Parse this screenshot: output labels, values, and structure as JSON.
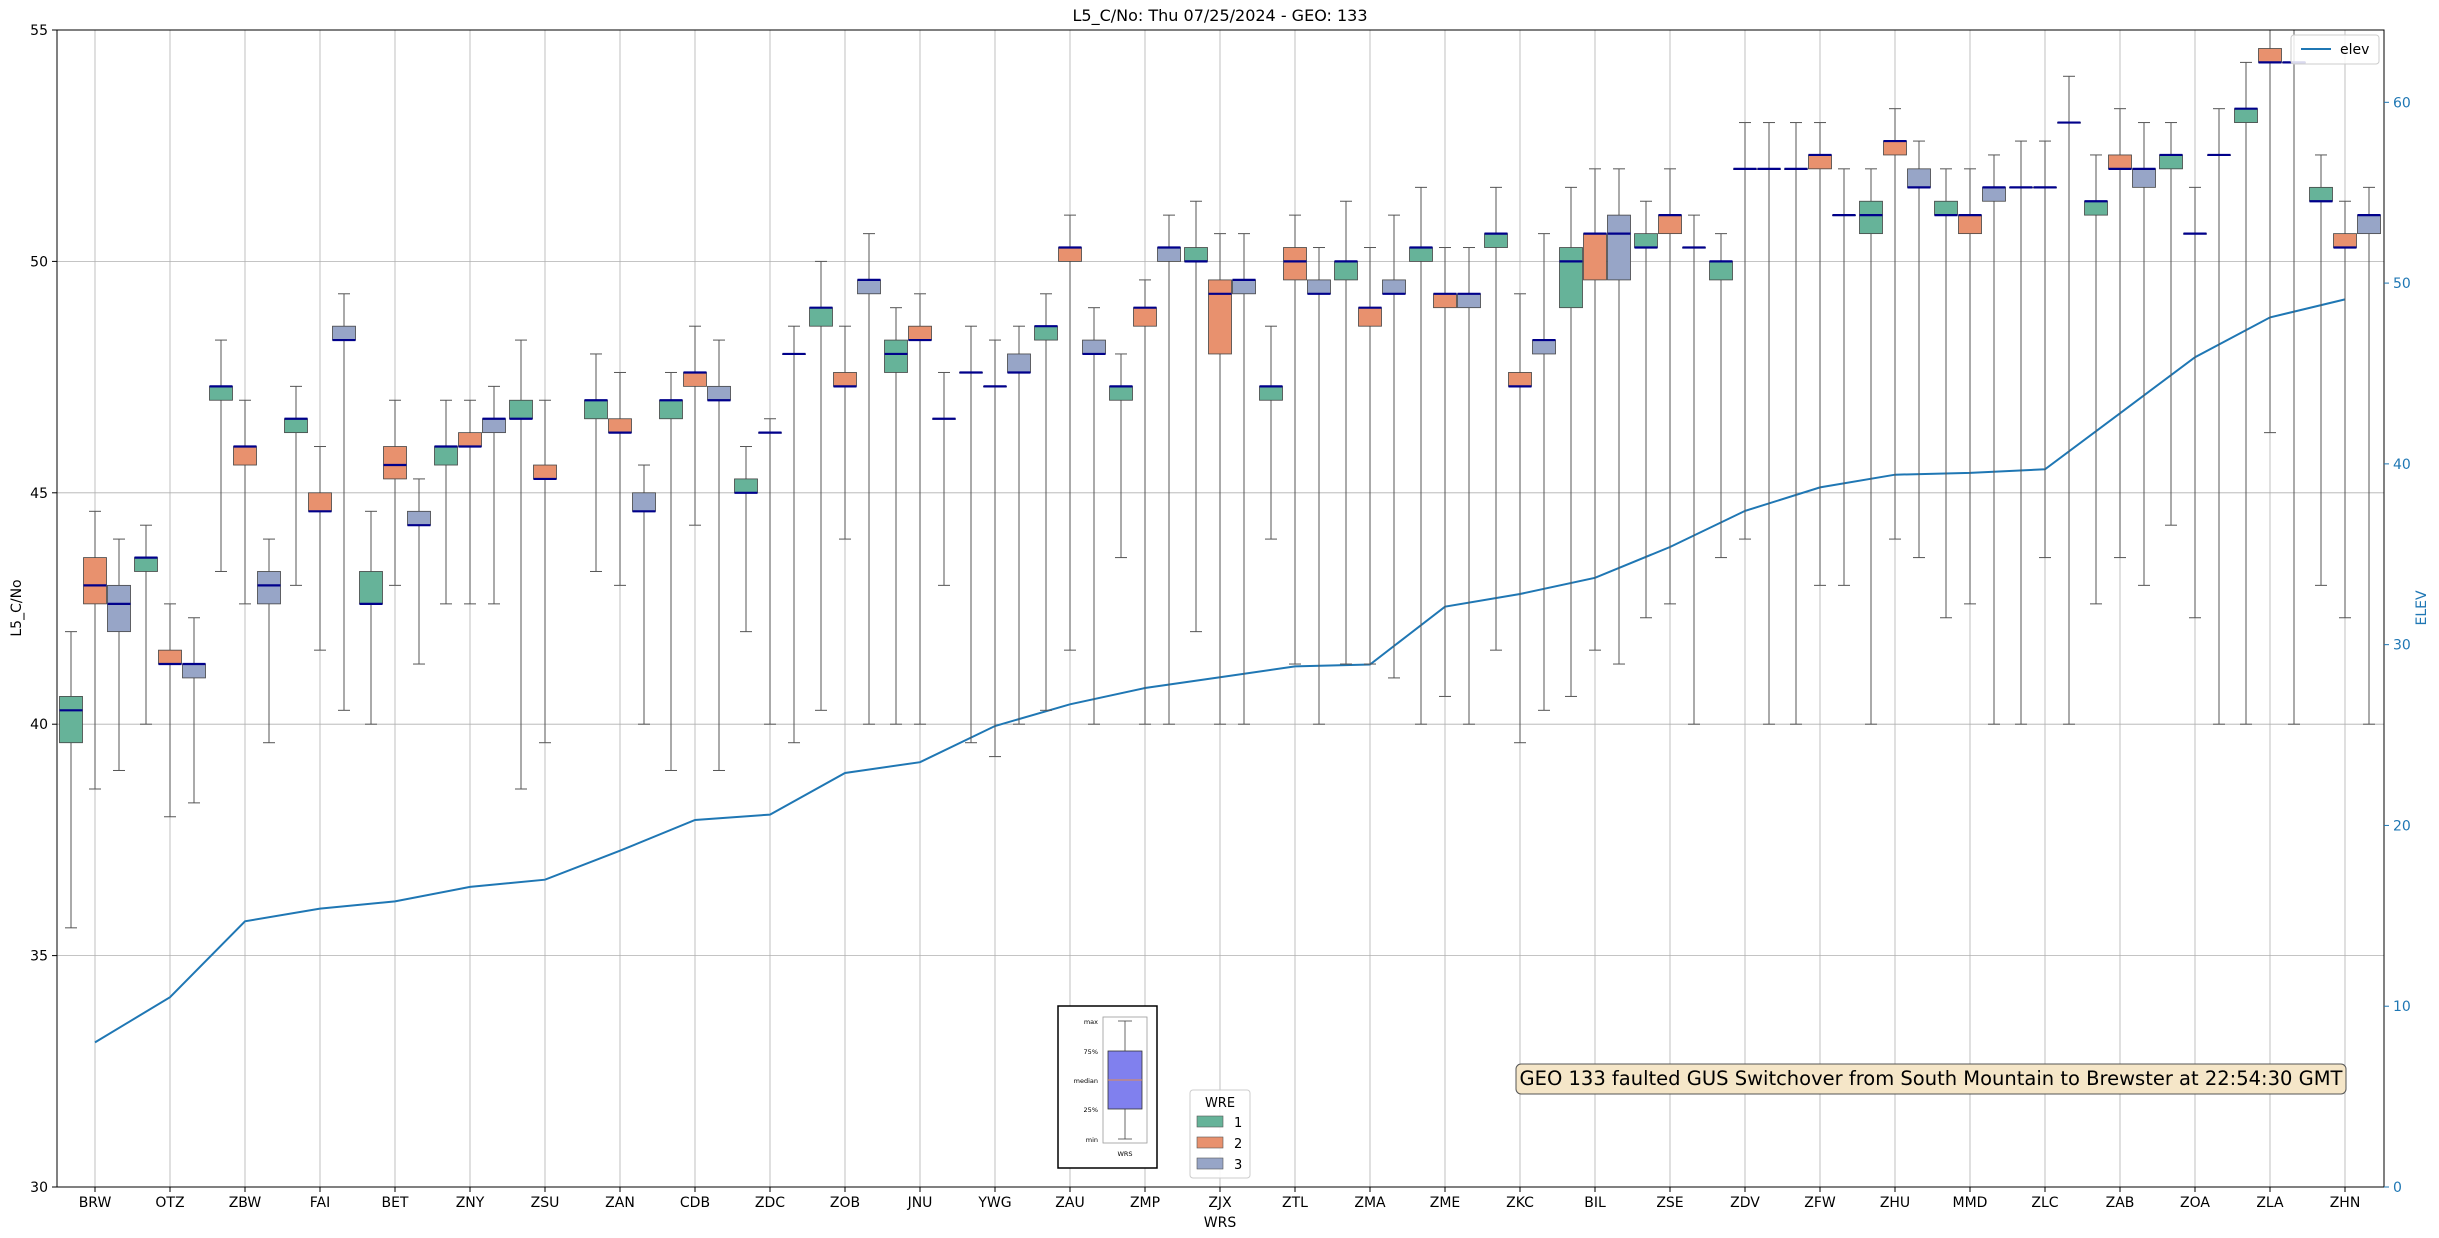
{
  "chart_data": {
    "type": "box",
    "title": "L5_C/No: Thu 07/25/2024 - GEO: 133",
    "xlabel": "WRS",
    "ylabel": "L5_C/No",
    "y2label": "ELEV",
    "ylim": [
      30,
      55
    ],
    "y2lim": [
      0,
      64
    ],
    "yticks": [
      30,
      35,
      40,
      45,
      50,
      55
    ],
    "y2ticks": [
      0,
      10,
      20,
      30,
      40,
      50,
      60
    ],
    "grid": true,
    "categories": [
      "BRW",
      "OTZ",
      "ZBW",
      "FAI",
      "BET",
      "ZNY",
      "ZSU",
      "ZAN",
      "CDB",
      "ZDC",
      "ZOB",
      "JNU",
      "YWG",
      "ZAU",
      "ZMP",
      "ZJX",
      "ZTL",
      "ZMA",
      "ZME",
      "ZKC",
      "BIL",
      "ZSE",
      "ZDV",
      "ZFW",
      "ZHU",
      "MMD",
      "ZLC",
      "ZAB",
      "ZOA",
      "ZLA",
      "ZHN"
    ],
    "legend_wre": {
      "title": "WRE",
      "entries": [
        "1",
        "2",
        "3"
      ],
      "colors": [
        "#66b399",
        "#e8916e",
        "#97a5c7"
      ],
      "placement": "bottom-center"
    },
    "legend_elev": {
      "entries": [
        "elev"
      ],
      "placement": "top-right"
    },
    "median_color": "#00008b",
    "elev_color": "#1f77b4",
    "annotation": "GEO 133 faulted GUS Switchover from South Mountain to Brewster at 22:54:30 GMT",
    "key_panel": {
      "labels": [
        "max",
        "75%",
        "median",
        "25%",
        "min"
      ],
      "footer": "WRS"
    },
    "elevation": [
      8,
      10.5,
      14.7,
      15.4,
      15.8,
      16.6,
      17,
      18.6,
      20.3,
      20.6,
      22.9,
      23.5,
      25.5,
      26.7,
      27.6,
      28.2,
      28.8,
      28.9,
      32.1,
      32.8,
      33.7,
      35.4,
      37.4,
      38.7,
      39.4,
      39.5,
      39.7,
      42.8,
      45.9,
      48.1,
      49.1
    ],
    "series": [
      {
        "name": "1",
        "offset": -1,
        "boxes": [
          {
            "cat": "BRW",
            "min": 35.6,
            "q1": 39.6,
            "median": 40.3,
            "q3": 40.6,
            "max": 42.0
          },
          {
            "cat": "OTZ",
            "min": 40.0,
            "q1": 43.3,
            "median": 43.6,
            "q3": 43.6,
            "max": 44.3
          },
          {
            "cat": "ZBW",
            "min": 43.3,
            "q1": 47.0,
            "median": 47.3,
            "q3": 47.3,
            "max": 48.3
          },
          {
            "cat": "FAI",
            "min": 43.0,
            "q1": 46.3,
            "median": 46.6,
            "q3": 46.6,
            "max": 47.3
          },
          {
            "cat": "BET",
            "min": 40.0,
            "q1": 42.6,
            "median": 42.6,
            "q3": 43.3,
            "max": 44.6
          },
          {
            "cat": "ZNY",
            "min": 42.6,
            "q1": 45.6,
            "median": 46.0,
            "q3": 46.0,
            "max": 47.0
          },
          {
            "cat": "ZSU",
            "min": 38.6,
            "q1": 46.6,
            "median": 46.6,
            "q3": 47.0,
            "max": 48.3
          },
          {
            "cat": "ZAN",
            "min": 43.3,
            "q1": 46.6,
            "median": 47.0,
            "q3": 47.0,
            "max": 48.0
          },
          {
            "cat": "CDB",
            "min": 39.0,
            "q1": 46.6,
            "median": 47.0,
            "q3": 47.0,
            "max": 47.6
          },
          {
            "cat": "ZDC",
            "min": 42.0,
            "q1": 45.0,
            "median": 45.0,
            "q3": 45.3,
            "max": 46.0
          },
          {
            "cat": "ZOB",
            "min": 40.3,
            "q1": 48.6,
            "median": 49.0,
            "q3": 49.0,
            "max": 50.0
          },
          {
            "cat": "JNU",
            "min": 40.0,
            "q1": 47.6,
            "median": 48.0,
            "q3": 48.3,
            "max": 49.0
          },
          {
            "cat": "YWG",
            "min": 39.6,
            "q1": 47.6,
            "median": 47.6,
            "q3": 47.6,
            "max": 48.6
          },
          {
            "cat": "ZAU",
            "min": 40.3,
            "q1": 48.3,
            "median": 48.6,
            "q3": 48.6,
            "max": 49.3
          },
          {
            "cat": "ZMP",
            "min": 43.6,
            "q1": 47.0,
            "median": 47.3,
            "q3": 47.3,
            "max": 48.0
          },
          {
            "cat": "ZJX",
            "min": 42.0,
            "q1": 50.0,
            "median": 50.0,
            "q3": 50.3,
            "max": 51.3
          },
          {
            "cat": "ZTL",
            "min": 44.0,
            "q1": 47.0,
            "median": 47.3,
            "q3": 47.3,
            "max": 48.6
          },
          {
            "cat": "ZMA",
            "min": 41.3,
            "q1": 49.6,
            "median": 50.0,
            "q3": 50.0,
            "max": 51.3
          },
          {
            "cat": "ZME",
            "min": 40.0,
            "q1": 50.0,
            "median": 50.3,
            "q3": 50.3,
            "max": 51.6
          },
          {
            "cat": "ZKC",
            "min": 41.6,
            "q1": 50.3,
            "median": 50.6,
            "q3": 50.6,
            "max": 51.6
          },
          {
            "cat": "BIL",
            "min": 40.6,
            "q1": 49.0,
            "median": 50.0,
            "q3": 50.3,
            "max": 51.6
          },
          {
            "cat": "ZSE",
            "min": 42.3,
            "q1": 50.3,
            "median": 50.3,
            "q3": 50.6,
            "max": 51.3
          },
          {
            "cat": "ZDV",
            "min": 43.6,
            "q1": 49.6,
            "median": 50.0,
            "q3": 50.0,
            "max": 50.6
          },
          {
            "cat": "ZFW",
            "min": 40.0,
            "q1": 52.0,
            "median": 52.0,
            "q3": 52.0,
            "max": 53.0
          },
          {
            "cat": "ZHU",
            "min": 40.0,
            "q1": 50.6,
            "median": 51.0,
            "q3": 51.3,
            "max": 52.0
          },
          {
            "cat": "MMD",
            "min": 42.3,
            "q1": 51.0,
            "median": 51.0,
            "q3": 51.3,
            "max": 52.0
          },
          {
            "cat": "ZLC",
            "min": 40.0,
            "q1": 51.6,
            "median": 51.6,
            "q3": 51.6,
            "max": 52.6
          },
          {
            "cat": "ZAB",
            "min": 42.6,
            "q1": 51.0,
            "median": 51.3,
            "q3": 51.3,
            "max": 52.3
          },
          {
            "cat": "ZOA",
            "min": 44.3,
            "q1": 52.0,
            "median": 52.3,
            "q3": 52.3,
            "max": 53.0
          },
          {
            "cat": "ZLA",
            "min": 40.0,
            "q1": 53.0,
            "median": 53.3,
            "q3": 53.3,
            "max": 54.3
          },
          {
            "cat": "ZHN",
            "min": 43.0,
            "q1": 51.3,
            "median": 51.3,
            "q3": 51.6,
            "max": 52.3
          }
        ]
      },
      {
        "name": "2",
        "offset": 0,
        "boxes": [
          {
            "cat": "BRW",
            "min": 38.6,
            "q1": 42.6,
            "median": 43.0,
            "q3": 43.6,
            "max": 44.6
          },
          {
            "cat": "OTZ",
            "min": 38.0,
            "q1": 41.3,
            "median": 41.3,
            "q3": 41.6,
            "max": 42.6
          },
          {
            "cat": "ZBW",
            "min": 42.6,
            "q1": 45.6,
            "median": 46.0,
            "q3": 46.0,
            "max": 47.0
          },
          {
            "cat": "FAI",
            "min": 41.6,
            "q1": 44.6,
            "median": 44.6,
            "q3": 45.0,
            "max": 46.0
          },
          {
            "cat": "BET",
            "min": 43.0,
            "q1": 45.3,
            "median": 45.6,
            "q3": 46.0,
            "max": 47.0
          },
          {
            "cat": "ZNY",
            "min": 42.6,
            "q1": 46.0,
            "median": 46.0,
            "q3": 46.3,
            "max": 47.0
          },
          {
            "cat": "ZSU",
            "min": 39.6,
            "q1": 45.3,
            "median": 45.3,
            "q3": 45.6,
            "max": 47.0
          },
          {
            "cat": "ZAN",
            "min": 43.0,
            "q1": 46.3,
            "median": 46.3,
            "q3": 46.6,
            "max": 47.6
          },
          {
            "cat": "CDB",
            "min": 44.3,
            "q1": 47.3,
            "median": 47.6,
            "q3": 47.6,
            "max": 48.6
          },
          {
            "cat": "ZDC",
            "min": 40.0,
            "q1": 46.3,
            "median": 46.3,
            "q3": 46.3,
            "max": 46.6
          },
          {
            "cat": "ZOB",
            "min": 44.0,
            "q1": 47.3,
            "median": 47.3,
            "q3": 47.6,
            "max": 48.6
          },
          {
            "cat": "JNU",
            "min": 40.0,
            "q1": 48.3,
            "median": 48.3,
            "q3": 48.6,
            "max": 49.3
          },
          {
            "cat": "YWG",
            "min": 39.3,
            "q1": 47.3,
            "median": 47.3,
            "q3": 47.3,
            "max": 48.3
          },
          {
            "cat": "ZAU",
            "min": 41.6,
            "q1": 50.0,
            "median": 50.3,
            "q3": 50.3,
            "max": 51.0
          },
          {
            "cat": "ZMP",
            "min": 40.0,
            "q1": 48.6,
            "median": 49.0,
            "q3": 49.0,
            "max": 49.6
          },
          {
            "cat": "ZJX",
            "min": 40.0,
            "q1": 48.0,
            "median": 49.3,
            "q3": 49.6,
            "max": 50.6
          },
          {
            "cat": "ZTL",
            "min": 41.3,
            "q1": 49.6,
            "median": 50.0,
            "q3": 50.3,
            "max": 51.0
          },
          {
            "cat": "ZMA",
            "min": 41.3,
            "q1": 48.6,
            "median": 49.0,
            "q3": 49.0,
            "max": 50.3
          },
          {
            "cat": "ZME",
            "min": 40.6,
            "q1": 49.0,
            "median": 49.3,
            "q3": 49.3,
            "max": 50.3
          },
          {
            "cat": "ZKC",
            "min": 39.6,
            "q1": 47.3,
            "median": 47.3,
            "q3": 47.6,
            "max": 49.3
          },
          {
            "cat": "BIL",
            "min": 41.6,
            "q1": 49.6,
            "median": 50.6,
            "q3": 50.6,
            "max": 52.0
          },
          {
            "cat": "ZSE",
            "min": 42.6,
            "q1": 50.6,
            "median": 51.0,
            "q3": 51.0,
            "max": 52.0
          },
          {
            "cat": "ZDV",
            "min": 44.0,
            "q1": 52.0,
            "median": 52.0,
            "q3": 52.0,
            "max": 53.0
          },
          {
            "cat": "ZFW",
            "min": 43.0,
            "q1": 52.0,
            "median": 52.3,
            "q3": 52.3,
            "max": 53.0
          },
          {
            "cat": "ZHU",
            "min": 44.0,
            "q1": 52.3,
            "median": 52.6,
            "q3": 52.6,
            "max": 53.3
          },
          {
            "cat": "MMD",
            "min": 42.6,
            "q1": 50.6,
            "median": 51.0,
            "q3": 51.0,
            "max": 52.0
          },
          {
            "cat": "ZLC",
            "min": 43.6,
            "q1": 51.6,
            "median": 51.6,
            "q3": 51.6,
            "max": 52.6
          },
          {
            "cat": "ZAB",
            "min": 43.6,
            "q1": 52.0,
            "median": 52.0,
            "q3": 52.3,
            "max": 53.3
          },
          {
            "cat": "ZOA",
            "min": 42.3,
            "q1": 50.6,
            "median": 50.6,
            "q3": 50.6,
            "max": 51.6
          },
          {
            "cat": "ZLA",
            "min": 46.3,
            "q1": 54.3,
            "median": 54.3,
            "q3": 54.6,
            "max": 55.0
          },
          {
            "cat": "ZHN",
            "min": 42.3,
            "q1": 50.3,
            "median": 50.3,
            "q3": 50.6,
            "max": 51.3
          }
        ]
      },
      {
        "name": "3",
        "offset": 1,
        "boxes": [
          {
            "cat": "BRW",
            "min": 39.0,
            "q1": 42.0,
            "median": 42.6,
            "q3": 43.0,
            "max": 44.0
          },
          {
            "cat": "OTZ",
            "min": 38.3,
            "q1": 41.0,
            "median": 41.3,
            "q3": 41.3,
            "max": 42.3
          },
          {
            "cat": "ZBW",
            "min": 39.6,
            "q1": 42.6,
            "median": 43.0,
            "q3": 43.3,
            "max": 44.0
          },
          {
            "cat": "FAI",
            "min": 40.3,
            "q1": 48.3,
            "median": 48.3,
            "q3": 48.6,
            "max": 49.3
          },
          {
            "cat": "BET",
            "min": 41.3,
            "q1": 44.3,
            "median": 44.3,
            "q3": 44.6,
            "max": 45.3
          },
          {
            "cat": "ZNY",
            "min": 42.6,
            "q1": 46.3,
            "median": 46.6,
            "q3": 46.6,
            "max": 47.3
          },
          {
            "cat": "ZSU",
            "min": 0,
            "q1": 0,
            "median": 0,
            "q3": 0,
            "max": 0,
            "empty": true
          },
          {
            "cat": "ZAN",
            "min": 40.0,
            "q1": 44.6,
            "median": 44.6,
            "q3": 45.0,
            "max": 45.6
          },
          {
            "cat": "CDB",
            "min": 39.0,
            "q1": 47.0,
            "median": 47.0,
            "q3": 47.3,
            "max": 48.3
          },
          {
            "cat": "ZDC",
            "min": 39.6,
            "q1": 48.0,
            "median": 48.0,
            "q3": 48.0,
            "max": 48.6
          },
          {
            "cat": "ZOB",
            "min": 40.0,
            "q1": 49.3,
            "median": 49.6,
            "q3": 49.6,
            "max": 50.6
          },
          {
            "cat": "JNU",
            "min": 43.0,
            "q1": 46.6,
            "median": 46.6,
            "q3": 46.6,
            "max": 47.6
          },
          {
            "cat": "YWG",
            "min": 40.0,
            "q1": 47.6,
            "median": 47.6,
            "q3": 48.0,
            "max": 48.6
          },
          {
            "cat": "ZAU",
            "min": 40.0,
            "q1": 48.0,
            "median": 48.0,
            "q3": 48.3,
            "max": 49.0
          },
          {
            "cat": "ZMP",
            "min": 40.0,
            "q1": 50.0,
            "median": 50.3,
            "q3": 50.3,
            "max": 51.0
          },
          {
            "cat": "ZJX",
            "min": 40.0,
            "q1": 49.3,
            "median": 49.6,
            "q3": 49.6,
            "max": 50.6
          },
          {
            "cat": "ZTL",
            "min": 40.0,
            "q1": 49.3,
            "median": 49.3,
            "q3": 49.6,
            "max": 50.3
          },
          {
            "cat": "ZMA",
            "min": 41.0,
            "q1": 49.3,
            "median": 49.3,
            "q3": 49.6,
            "max": 51.0
          },
          {
            "cat": "ZME",
            "min": 40.0,
            "q1": 49.0,
            "median": 49.3,
            "q3": 49.3,
            "max": 50.3
          },
          {
            "cat": "ZKC",
            "min": 40.3,
            "q1": 48.0,
            "median": 48.3,
            "q3": 48.3,
            "max": 50.6
          },
          {
            "cat": "BIL",
            "min": 41.3,
            "q1": 49.6,
            "median": 50.6,
            "q3": 51.0,
            "max": 52.0
          },
          {
            "cat": "ZSE",
            "min": 40.0,
            "q1": 50.3,
            "median": 50.3,
            "q3": 50.3,
            "max": 51.0
          },
          {
            "cat": "ZDV",
            "min": 40.0,
            "q1": 52.0,
            "median": 52.0,
            "q3": 52.0,
            "max": 53.0
          },
          {
            "cat": "ZFW",
            "min": 43.0,
            "q1": 51.0,
            "median": 51.0,
            "q3": 51.0,
            "max": 52.0
          },
          {
            "cat": "ZHU",
            "min": 43.6,
            "q1": 51.6,
            "median": 51.6,
            "q3": 52.0,
            "max": 52.6
          },
          {
            "cat": "MMD",
            "min": 40.0,
            "q1": 51.3,
            "median": 51.6,
            "q3": 51.6,
            "max": 52.3
          },
          {
            "cat": "ZLC",
            "min": 40.0,
            "q1": 53.0,
            "median": 53.0,
            "q3": 53.0,
            "max": 54.0
          },
          {
            "cat": "ZAB",
            "min": 43.0,
            "q1": 51.6,
            "median": 52.0,
            "q3": 52.0,
            "max": 53.0
          },
          {
            "cat": "ZOA",
            "min": 40.0,
            "q1": 52.3,
            "median": 52.3,
            "q3": 52.3,
            "max": 53.3
          },
          {
            "cat": "ZLA",
            "min": 40.0,
            "q1": 54.3,
            "median": 54.3,
            "q3": 54.3,
            "max": 55.0
          },
          {
            "cat": "ZHN",
            "min": 40.0,
            "q1": 50.6,
            "median": 51.0,
            "q3": 51.0,
            "max": 51.6
          }
        ]
      }
    ]
  }
}
